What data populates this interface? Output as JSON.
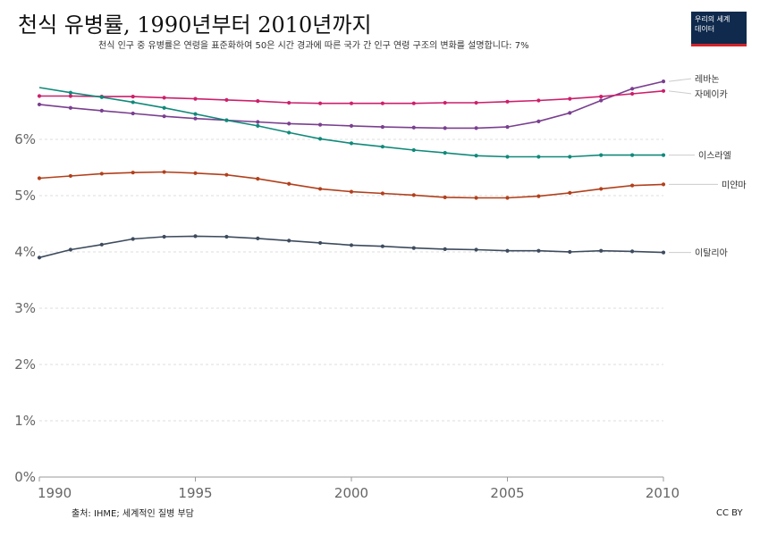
{
  "header": {
    "title": "천식 유병률, 1990년부터 2010년까지",
    "subtitle": "천식 인구 중 유병률은 연령을 표준화하여 50은 시간 경과에 따른 국가 간 인구 연령 구조의 변화를 설명합니다: 7%"
  },
  "logo": {
    "text": "우리의 세계\n데이터",
    "colors": {
      "background": "#0f2a4c",
      "accent": "#d4232a"
    }
  },
  "footer": {
    "source": "출처: IHME; 세계적인 질병 부담",
    "license": "CC BY"
  },
  "chart_data": {
    "type": "line",
    "title": "천식 유병률, 1990년부터 2010년까지",
    "x": [
      1990,
      1991,
      1992,
      1993,
      1994,
      1995,
      1996,
      1997,
      1998,
      1999,
      2000,
      2001,
      2002,
      2003,
      2004,
      2005,
      2006,
      2007,
      2008,
      2009,
      2010
    ],
    "xlim": [
      1990,
      2010
    ],
    "x_ticks": [
      1990,
      1995,
      2000,
      2005,
      2010
    ],
    "x_tick_labels": [
      "1990",
      "1995",
      "2000",
      "2005",
      "2010"
    ],
    "ylim": [
      0,
      7
    ],
    "y_ticks": [
      0,
      1,
      2,
      3,
      4,
      5,
      6
    ],
    "y_tick_labels": [
      "0%",
      "1%",
      "2%",
      "3%",
      "4%",
      "5%",
      "6%"
    ],
    "grid": true,
    "legend": "inline-right",
    "series": [
      {
        "name": "레바논",
        "color": "#7a3f8f",
        "values": [
          6.62,
          6.56,
          6.51,
          6.46,
          6.41,
          6.37,
          6.34,
          6.31,
          6.28,
          6.26,
          6.24,
          6.22,
          6.21,
          6.2,
          6.2,
          6.22,
          6.32,
          6.47,
          6.69,
          6.9,
          7.03
        ]
      },
      {
        "name": "자메이카",
        "color": "#cc1f6b",
        "values": [
          6.77,
          6.77,
          6.76,
          6.76,
          6.74,
          6.72,
          6.7,
          6.68,
          6.65,
          6.64,
          6.64,
          6.64,
          6.64,
          6.65,
          6.65,
          6.67,
          6.69,
          6.72,
          6.76,
          6.81,
          6.86
        ]
      },
      {
        "name": "이스라엘",
        "color": "#10897a",
        "values": [
          6.92,
          6.83,
          6.75,
          6.66,
          6.56,
          6.45,
          6.34,
          6.24,
          6.12,
          6.01,
          5.93,
          5.87,
          5.81,
          5.76,
          5.71,
          5.69,
          5.69,
          5.69,
          5.72,
          5.72,
          5.72
        ]
      },
      {
        "name": "미얀마",
        "color": "#b1401c",
        "values": [
          5.31,
          5.35,
          5.39,
          5.41,
          5.42,
          5.4,
          5.37,
          5.3,
          5.21,
          5.12,
          5.07,
          5.04,
          5.01,
          4.97,
          4.96,
          4.96,
          4.99,
          5.05,
          5.12,
          5.18,
          5.2
        ]
      },
      {
        "name": "이탈리아",
        "color": "#3d4b5e",
        "values": [
          3.9,
          4.04,
          4.13,
          4.23,
          4.27,
          4.28,
          4.27,
          4.24,
          4.2,
          4.16,
          4.12,
          4.1,
          4.07,
          4.05,
          4.04,
          4.02,
          4.02,
          4.0,
          4.02,
          4.01,
          3.99
        ]
      }
    ]
  }
}
